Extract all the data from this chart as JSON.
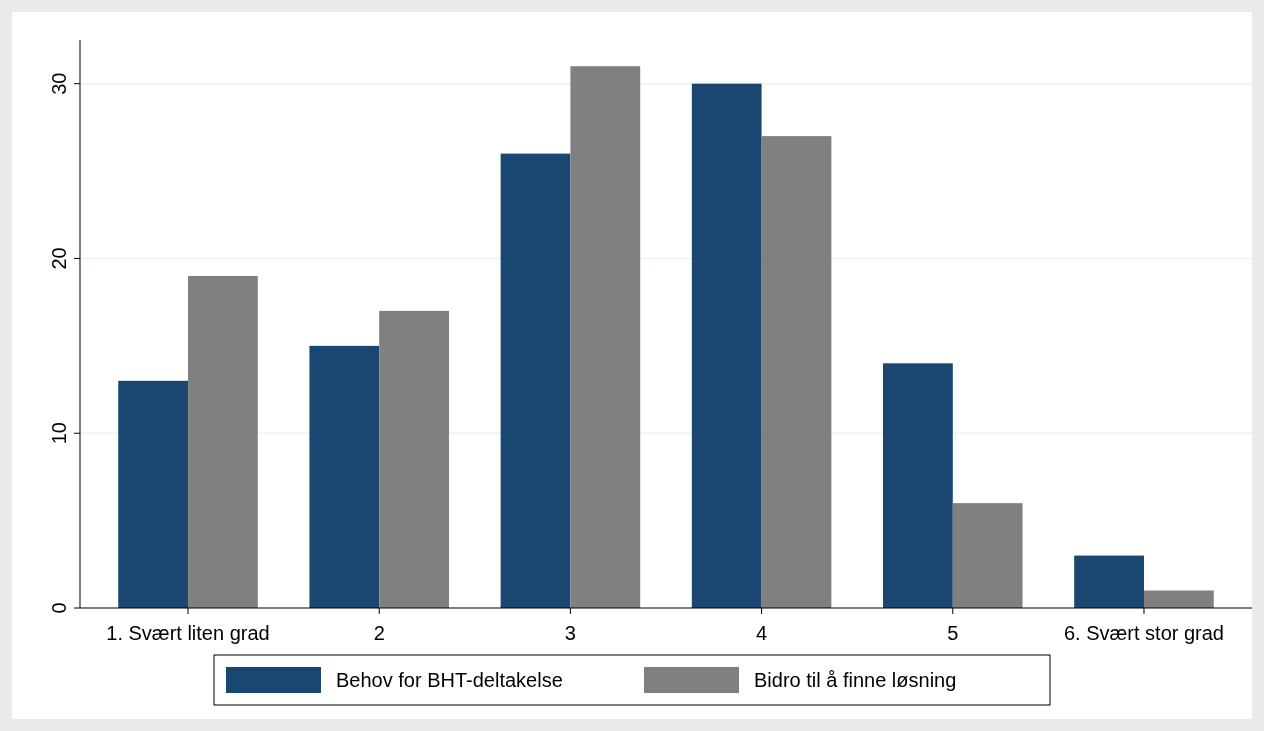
{
  "chart_data": {
    "type": "bar",
    "categories": [
      "1. Svært liten grad",
      "2",
      "3",
      "4",
      "5",
      "6. Svært stor grad"
    ],
    "series": [
      {
        "name": "Behov for BHT-deltakelse",
        "color": "#1a476f",
        "values": [
          13,
          15,
          26,
          30,
          14,
          3
        ]
      },
      {
        "name": "Bidro til å finne løsning",
        "color": "#808080",
        "values": [
          19,
          17,
          31,
          27,
          6,
          1
        ]
      }
    ],
    "ylim": [
      0,
      32.5
    ],
    "yticks": [
      0,
      10,
      20,
      30
    ],
    "grid": "y",
    "legend": "bottom"
  }
}
